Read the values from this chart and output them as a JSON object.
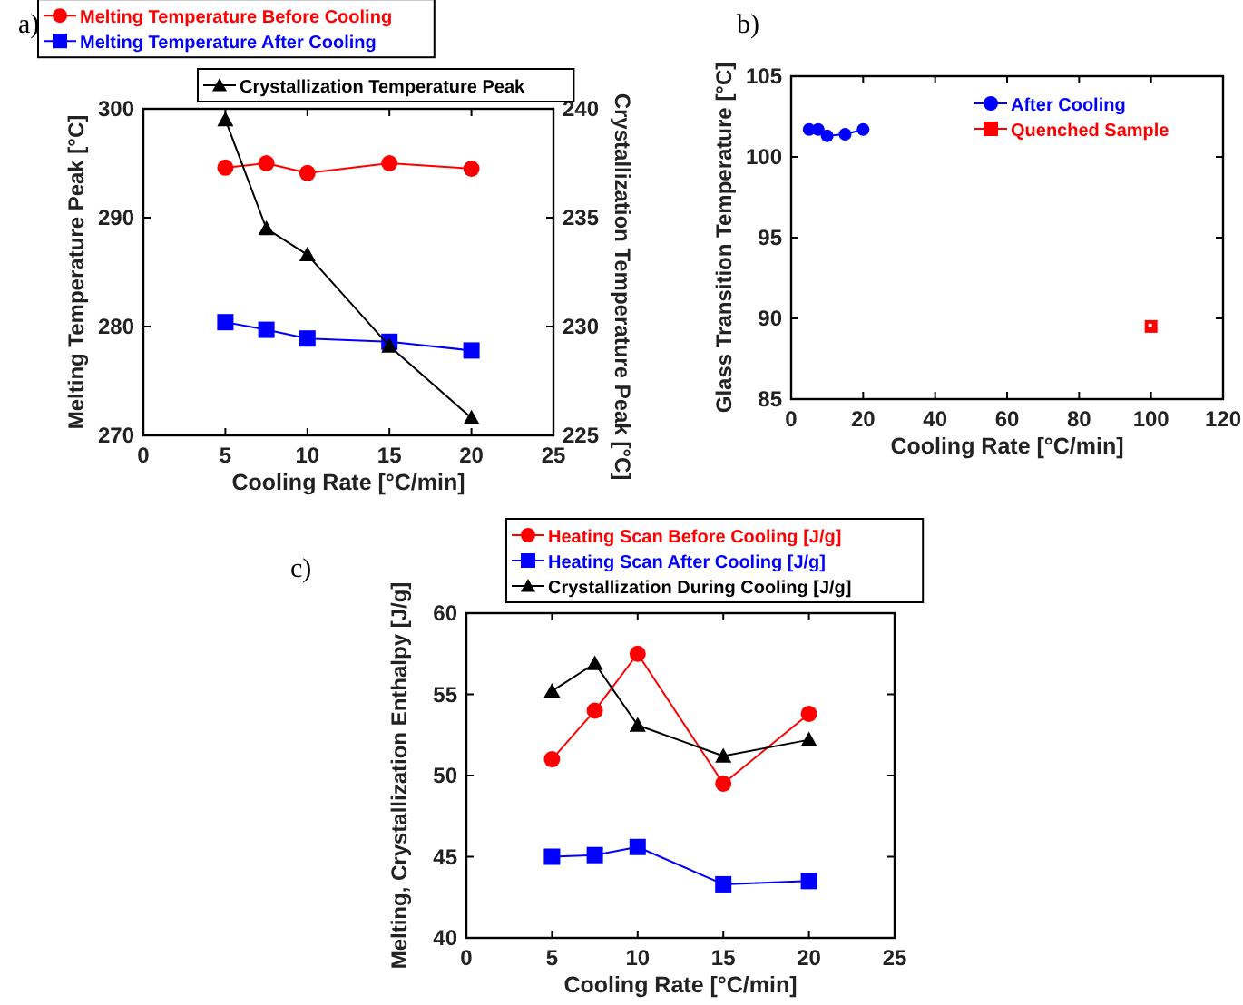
{
  "chart_data": [
    {
      "type": "line",
      "title": "a)",
      "xlabel": "Cooling Rate [°C/min]",
      "ylabel": "Melting Temperature Peak [°C]",
      "y2label": "Crystallization Temperature Peak [°C]",
      "xlim": [
        0,
        25
      ],
      "xticks": [
        0,
        5,
        10,
        15,
        20,
        25
      ],
      "ylim": [
        270,
        300
      ],
      "yticks": [
        270,
        280,
        290,
        300
      ],
      "y2lim": [
        225,
        240
      ],
      "y2ticks": [
        225,
        230,
        235,
        240
      ],
      "legend": "top",
      "x": [
        5,
        7.5,
        10,
        15,
        20
      ],
      "series": [
        {
          "name": "Melting Temperature Before Cooling",
          "color": "#ff0000",
          "marker": "circle",
          "values": [
            294.6,
            295.0,
            294.1,
            295.0,
            294.5
          ]
        },
        {
          "name": "Melting Temperature After Cooling",
          "color": "#0000ff",
          "marker": "square",
          "values": [
            280.4,
            279.7,
            278.9,
            278.6,
            277.8
          ]
        },
        {
          "name": "Crystallization Temperature Peak",
          "color": "#000000",
          "marker": "triangle",
          "axis": "y2",
          "values": [
            239.5,
            234.5,
            233.3,
            229.1,
            225.8
          ]
        }
      ]
    },
    {
      "type": "line",
      "title": "b)",
      "xlabel": "Cooling Rate [°C/min]",
      "ylabel": "Glass Transition Temperature [°C]",
      "xlim": [
        0,
        120
      ],
      "xticks": [
        0,
        20,
        40,
        60,
        80,
        100,
        120
      ],
      "ylim": [
        85,
        105
      ],
      "yticks": [
        85,
        90,
        95,
        100,
        105
      ],
      "legend": "top right",
      "series": [
        {
          "name": "After Cooling",
          "color": "#0000ff",
          "marker": "circle",
          "x": [
            5,
            7.5,
            10,
            15,
            20
          ],
          "values": [
            101.7,
            101.7,
            101.3,
            101.4,
            101.7
          ]
        },
        {
          "name": "Quenched Sample",
          "type": "scatter",
          "color": "#ff0000",
          "marker": "square",
          "x": [
            100
          ],
          "values": [
            89.5
          ]
        }
      ]
    },
    {
      "type": "line",
      "title": "c)",
      "xlabel": "Cooling Rate [°C/min]",
      "ylabel": "Melting, Crystallization Enthalpy [J/g]",
      "xlim": [
        0,
        25
      ],
      "xticks": [
        0,
        5,
        10,
        15,
        20,
        25
      ],
      "ylim": [
        40,
        60
      ],
      "yticks": [
        40,
        45,
        50,
        55,
        60
      ],
      "legend": "top",
      "x": [
        5,
        7.5,
        10,
        15,
        20
      ],
      "series": [
        {
          "name": "Heating Scan Before Cooling [J/g]",
          "color": "#ff0000",
          "marker": "circle",
          "values": [
            51.0,
            54.0,
            57.5,
            49.5,
            53.8
          ]
        },
        {
          "name": "Heating Scan After Cooling [J/g]",
          "color": "#0000ff",
          "marker": "square",
          "values": [
            45.0,
            45.1,
            45.6,
            43.3,
            43.5
          ]
        },
        {
          "name": "Crystallization During Cooling [J/g]",
          "color": "#000000",
          "marker": "triangle",
          "values": [
            55.2,
            56.9,
            53.1,
            51.2,
            52.2
          ]
        }
      ]
    }
  ]
}
